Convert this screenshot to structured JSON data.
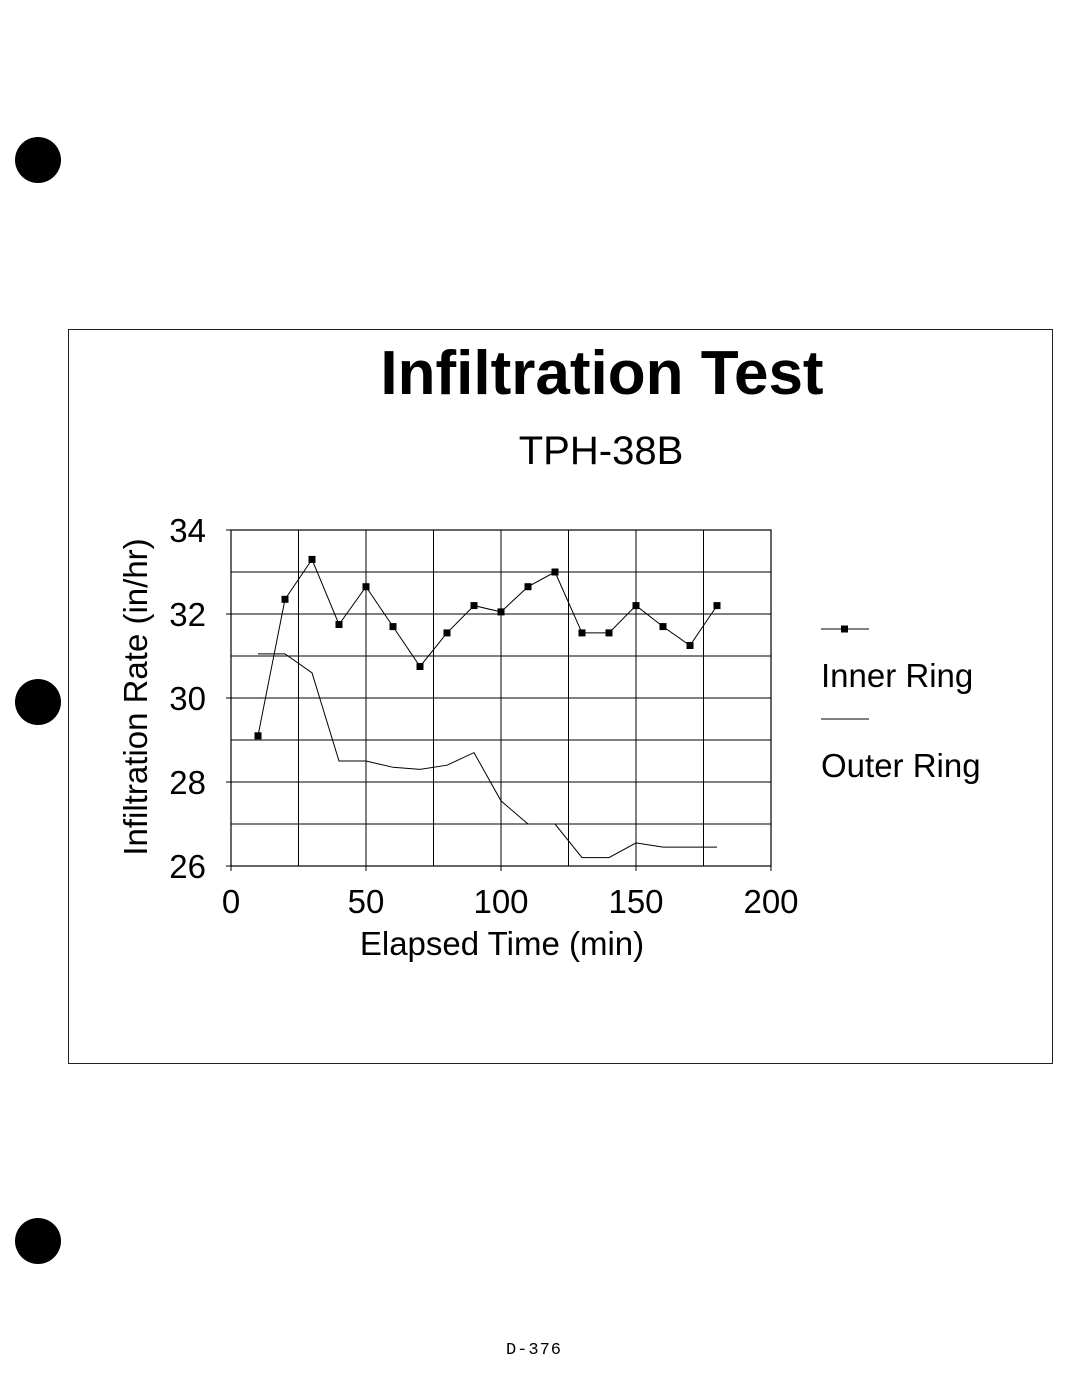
{
  "page": {
    "footer": "D-376"
  },
  "chart_data": {
    "type": "line",
    "title": "Infiltration Test",
    "subtitle": "TPH-38B",
    "xlabel": "Elapsed Time (min)",
    "ylabel": "Infiltration Rate (in/hr)",
    "xlim": [
      0,
      200
    ],
    "ylim": [
      26,
      34
    ],
    "xticks": [
      0,
      50,
      100,
      150,
      200
    ],
    "yticks": [
      26,
      28,
      30,
      32,
      34
    ],
    "grid": true,
    "legend_position": "right",
    "series": [
      {
        "name": "Inner Ring",
        "marker": "square",
        "color": "#000000",
        "x": [
          10,
          20,
          30,
          40,
          50,
          60,
          70,
          80,
          90,
          100,
          110,
          120,
          130,
          140,
          150,
          160,
          170,
          180
        ],
        "y": [
          29.1,
          32.35,
          33.3,
          31.75,
          32.65,
          31.7,
          30.75,
          31.55,
          32.2,
          32.05,
          32.65,
          33.0,
          31.55,
          31.55,
          32.2,
          31.7,
          31.25,
          32.2
        ]
      },
      {
        "name": "Outer Ring",
        "marker": "none",
        "color": "#000000",
        "x": [
          10,
          20,
          30,
          40,
          50,
          60,
          70,
          80,
          90,
          100,
          110,
          120,
          130,
          140,
          150,
          160,
          170,
          180
        ],
        "y": [
          31.05,
          31.05,
          30.6,
          28.5,
          28.5,
          28.35,
          28.3,
          28.4,
          28.7,
          27.55,
          27.0,
          27.0,
          26.2,
          26.2,
          26.55,
          26.45,
          26.45,
          26.45
        ]
      }
    ]
  }
}
